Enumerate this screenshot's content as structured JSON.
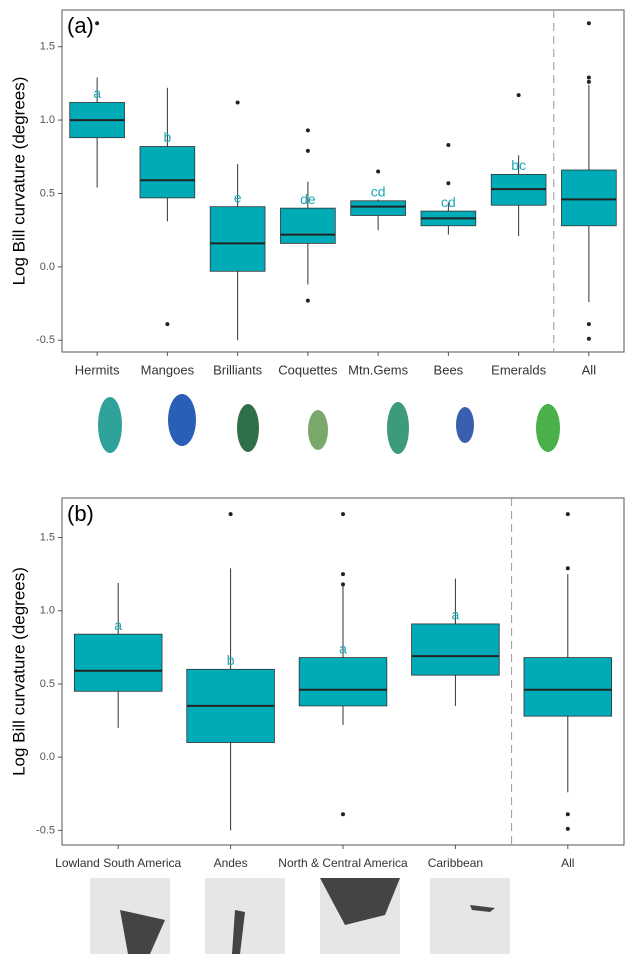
{
  "chart_data": [
    {
      "type": "box",
      "panel_label": "(a)",
      "ylabel": "Log Bill curvature (degrees)",
      "color": "#00abb8",
      "label_color": "#1aaab8",
      "categories": [
        "Hermits",
        "Mangoes",
        "Brilliants",
        "Coquettes",
        "Mtn.Gems",
        "Bees",
        "Emeralds",
        "All"
      ],
      "group_labels": [
        "a",
        "b",
        "e",
        "de",
        "cd",
        "cd",
        "bc",
        null
      ],
      "boxes": [
        {
          "low": 0.54,
          "q1": 0.88,
          "median": 1.0,
          "q3": 1.12,
          "high": 1.29,
          "outliers": [
            1.66
          ]
        },
        {
          "low": 0.31,
          "q1": 0.47,
          "median": 0.59,
          "q3": 0.82,
          "high": 1.22,
          "outliers": [
            -0.39
          ]
        },
        {
          "low": -0.5,
          "q1": -0.03,
          "median": 0.16,
          "q3": 0.41,
          "high": 0.7,
          "outliers": [
            1.12
          ]
        },
        {
          "low": -0.12,
          "q1": 0.16,
          "median": 0.22,
          "q3": 0.4,
          "high": 0.58,
          "outliers": [
            0.93,
            0.79,
            -0.23
          ]
        },
        {
          "low": 0.25,
          "q1": 0.35,
          "median": 0.41,
          "q3": 0.45,
          "high": 0.46,
          "outliers": [
            0.65
          ]
        },
        {
          "low": 0.22,
          "q1": 0.28,
          "median": 0.33,
          "q3": 0.38,
          "high": 0.44,
          "outliers": [
            0.83,
            0.57
          ]
        },
        {
          "low": 0.21,
          "q1": 0.42,
          "median": 0.53,
          "q3": 0.63,
          "high": 0.76,
          "outliers": [
            1.17
          ]
        },
        {
          "low": -0.24,
          "q1": 0.28,
          "median": 0.46,
          "q3": 0.66,
          "high": 1.24,
          "outliers": [
            1.66,
            1.29,
            1.26,
            -0.39,
            -0.49
          ]
        }
      ],
      "ylim": [
        -0.58,
        1.75
      ],
      "yticks": [
        -0.5,
        {
          "value": 0,
          "label": "0.0"
        },
        0.5,
        {
          "value": 1,
          "label": "1.0"
        },
        1.5
      ]
    },
    {
      "type": "box",
      "panel_label": "(b)",
      "ylabel": "Log Bill curvature (degrees)",
      "color": "#00abb8",
      "label_color": "#1aaab8",
      "categories": [
        "Lowland South America",
        "Andes",
        "North & Central America",
        "Caribbean",
        "All"
      ],
      "group_labels": [
        "a",
        "b",
        "a",
        "a",
        null
      ],
      "boxes": [
        {
          "low": 0.2,
          "q1": 0.45,
          "median": 0.59,
          "q3": 0.84,
          "high": 1.19,
          "outliers": []
        },
        {
          "low": -0.5,
          "q1": 0.1,
          "median": 0.35,
          "q3": 0.6,
          "high": 1.29,
          "outliers": [
            1.66
          ]
        },
        {
          "low": 0.22,
          "q1": 0.35,
          "median": 0.46,
          "q3": 0.68,
          "high": 1.19,
          "outliers": [
            1.66,
            1.25,
            1.18,
            -0.39
          ]
        },
        {
          "low": 0.35,
          "q1": 0.56,
          "median": 0.69,
          "q3": 0.91,
          "high": 1.22,
          "outliers": []
        },
        {
          "low": -0.24,
          "q1": 0.28,
          "median": 0.46,
          "q3": 0.68,
          "high": 1.25,
          "outliers": [
            1.66,
            1.29,
            -0.39,
            -0.49
          ]
        }
      ],
      "ylim": [
        -0.6,
        1.77
      ],
      "yticks": [
        -0.5,
        {
          "value": 0,
          "label": "0.0"
        },
        0.5,
        {
          "value": 1,
          "label": "1.0"
        },
        1.5
      ]
    }
  ]
}
